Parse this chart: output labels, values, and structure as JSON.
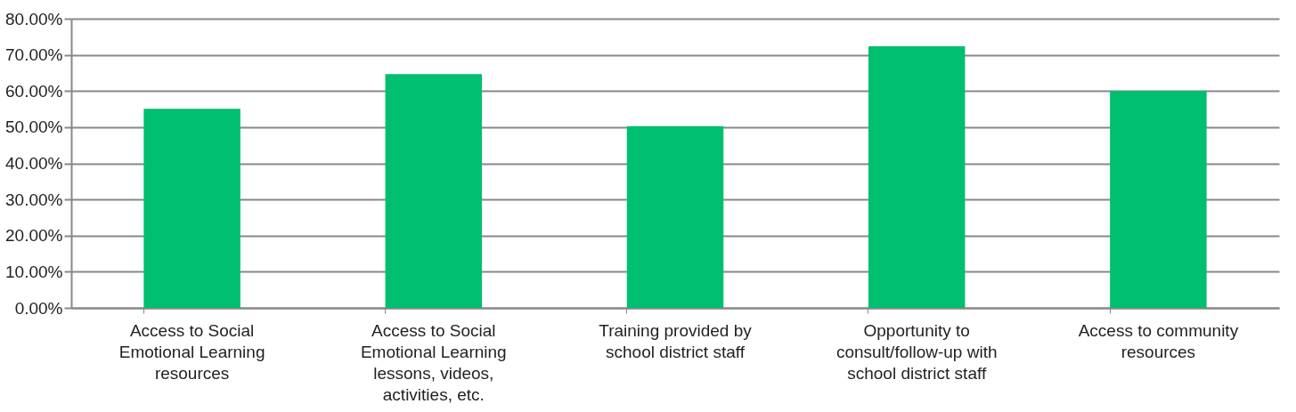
{
  "chart_data": {
    "type": "bar",
    "categories": [
      "Access to Social Emotional Learning resources",
      "Access to Social Emotional Learning lessons, videos, activities, etc.",
      "Training provided by school district staff",
      "Opportunity to consult/follow-up with school district staff",
      "Access to community resources"
    ],
    "values": [
      55.1,
      64.7,
      50.3,
      72.4,
      60.0
    ],
    "color": "#00bf6f",
    "ylim": [
      0,
      80
    ],
    "yticks": [
      {
        "value": 0,
        "label": "0.00%"
      },
      {
        "value": 10,
        "label": "10.00%"
      },
      {
        "value": 20,
        "label": "20.00%"
      },
      {
        "value": 30,
        "label": "30.00%"
      },
      {
        "value": 40,
        "label": "40.00%"
      },
      {
        "value": 50,
        "label": "50.00%"
      },
      {
        "value": 60,
        "label": "60.00%"
      },
      {
        "value": 70,
        "label": "70.00%"
      },
      {
        "value": 80,
        "label": "80.00%"
      }
    ],
    "grid": "y"
  }
}
